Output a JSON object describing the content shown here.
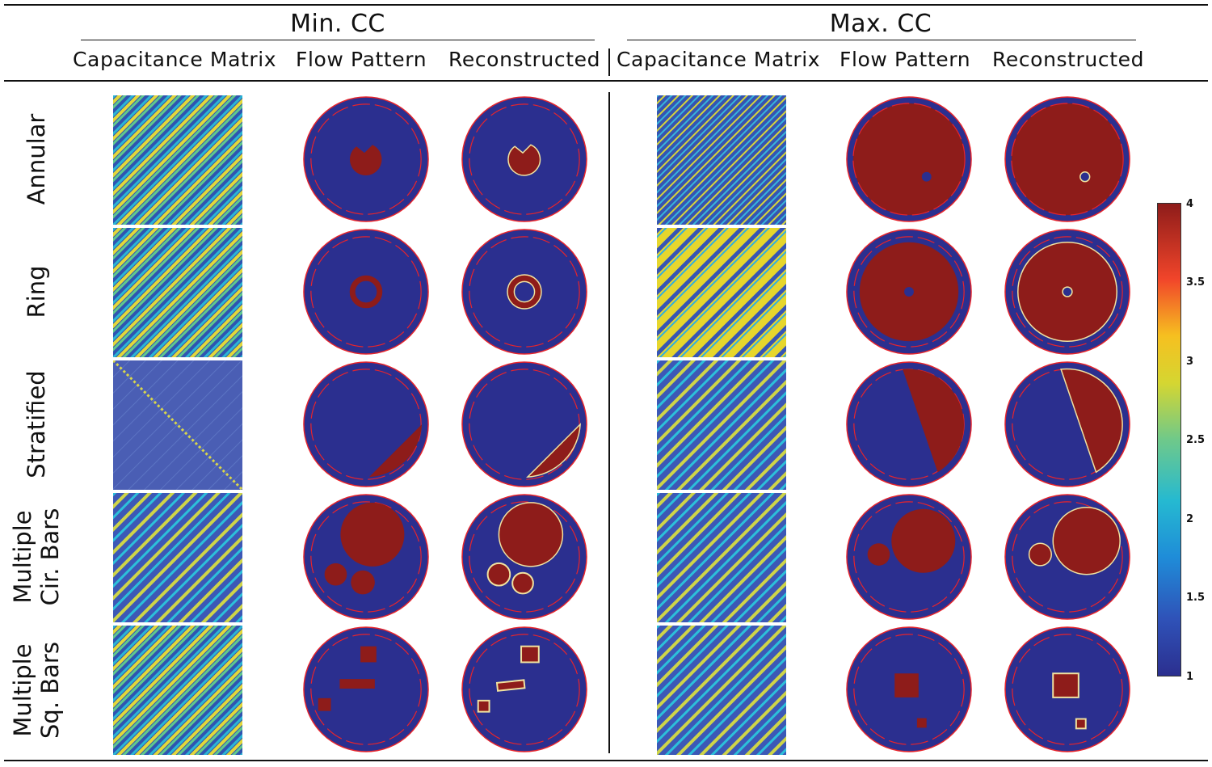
{
  "header": {
    "groups": [
      {
        "label": "Min. CC"
      },
      {
        "label": "Max. CC"
      }
    ],
    "columns": [
      "Capacitance Matrix",
      "Flow Pattern",
      "Reconstructed",
      "Capacitance Matrix",
      "Flow Pattern",
      "Reconstructed"
    ]
  },
  "rows": [
    {
      "label_lines": [
        "Annular"
      ]
    },
    {
      "label_lines": [
        "Ring"
      ]
    },
    {
      "label_lines": [
        "Stratified"
      ]
    },
    {
      "label_lines": [
        "Multiple",
        "Cir. Bars"
      ]
    },
    {
      "label_lines": [
        "Multiple",
        "Sq. Bars"
      ]
    }
  ],
  "colorbar": {
    "ticks": [
      "4",
      "3.5",
      "3",
      "2.5",
      "2",
      "1.5",
      "1"
    ],
    "min": 1,
    "max": 4,
    "colors": {
      "low": "#2b2f8f",
      "high": "#8e1c1a",
      "ring": "#e8242b"
    }
  }
}
